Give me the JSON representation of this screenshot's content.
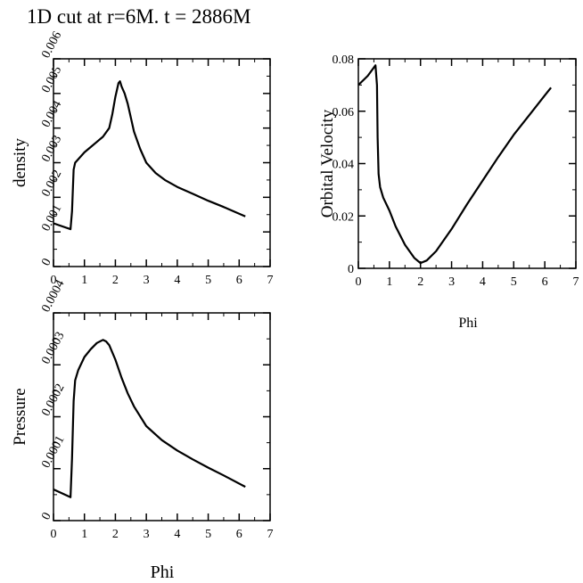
{
  "page_title": "1D cut  at r=6M. t = 2886M",
  "chart_data": [
    {
      "id": "density",
      "type": "line",
      "xlabel": "",
      "ylabel": "density",
      "xlim": [
        0,
        7
      ],
      "ylim": [
        0,
        0.006
      ],
      "x_ticks": [
        0,
        1,
        2,
        3,
        4,
        5,
        6,
        7
      ],
      "x_tick_labels": [
        "0",
        "1",
        "2",
        "3",
        "4",
        "5",
        "6",
        "7"
      ],
      "y_ticks": [
        0,
        0.001,
        0.002,
        0.003,
        0.004,
        0.005,
        0.006
      ],
      "y_tick_labels": [
        "0",
        "0.001",
        "0.002",
        "0.003",
        "0.004",
        "0.005",
        "0.006"
      ],
      "y_label_rotated": true,
      "series": [
        {
          "name": "density",
          "x": [
            0,
            0.55,
            0.6,
            0.65,
            0.7,
            0.8,
            1.0,
            1.2,
            1.4,
            1.6,
            1.8,
            1.9,
            2.0,
            2.1,
            2.15,
            2.2,
            2.3,
            2.4,
            2.5,
            2.6,
            2.8,
            3.0,
            3.3,
            3.6,
            4.0,
            4.5,
            5.0,
            5.5,
            6.2
          ],
          "y": [
            0.00125,
            0.00108,
            0.0016,
            0.0028,
            0.003,
            0.0031,
            0.0033,
            0.00345,
            0.0036,
            0.00375,
            0.004,
            0.0044,
            0.0049,
            0.0053,
            0.00535,
            0.0052,
            0.005,
            0.0047,
            0.0043,
            0.0039,
            0.0034,
            0.003,
            0.0027,
            0.0025,
            0.0023,
            0.0021,
            0.0019,
            0.00172,
            0.00145
          ]
        }
      ]
    },
    {
      "id": "orbital-velocity",
      "type": "line",
      "xlabel": "Phi",
      "ylabel": "Orbital Velocity",
      "xlim": [
        0,
        7
      ],
      "ylim": [
        0,
        0.08
      ],
      "x_ticks": [
        0,
        1,
        2,
        3,
        4,
        5,
        6,
        7
      ],
      "x_tick_labels": [
        "0",
        "1",
        "2",
        "3",
        "4",
        "5",
        "6",
        "7"
      ],
      "y_ticks": [
        0,
        0.02,
        0.04,
        0.06,
        0.08
      ],
      "y_tick_labels": [
        "0",
        "0.02",
        "0.04",
        "0.06",
        "0.08"
      ],
      "y_label_rotated": true,
      "series": [
        {
          "name": "orbital velocity",
          "x": [
            0,
            0.3,
            0.55,
            0.6,
            0.62,
            0.65,
            0.7,
            0.8,
            1.0,
            1.2,
            1.5,
            1.8,
            2.0,
            2.2,
            2.5,
            3.0,
            3.5,
            4.0,
            4.5,
            5.0,
            5.5,
            6.0,
            6.2
          ],
          "y": [
            0.07,
            0.0735,
            0.0775,
            0.07,
            0.05,
            0.036,
            0.031,
            0.027,
            0.022,
            0.016,
            0.009,
            0.004,
            0.002,
            0.003,
            0.0065,
            0.015,
            0.0245,
            0.0335,
            0.0425,
            0.051,
            0.0585,
            0.066,
            0.069
          ]
        }
      ]
    },
    {
      "id": "pressure",
      "type": "line",
      "xlabel": "Phi",
      "ylabel": "Pressure",
      "xlim": [
        0,
        7
      ],
      "ylim": [
        0,
        0.0004
      ],
      "x_ticks": [
        0,
        1,
        2,
        3,
        4,
        5,
        6,
        7
      ],
      "x_tick_labels": [
        "0",
        "1",
        "2",
        "3",
        "4",
        "5",
        "6",
        "7"
      ],
      "y_ticks": [
        0,
        0.0001,
        0.0002,
        0.0003,
        0.0004
      ],
      "y_tick_labels": [
        "0",
        "0.0001",
        "0.0002",
        "0.0003",
        "0.0004"
      ],
      "y_label_rotated": true,
      "series": [
        {
          "name": "pressure",
          "x": [
            0,
            0.55,
            0.6,
            0.65,
            0.7,
            0.8,
            1.0,
            1.2,
            1.4,
            1.6,
            1.7,
            1.8,
            2.0,
            2.2,
            2.4,
            2.6,
            3.0,
            3.5,
            4.0,
            4.5,
            5.0,
            5.5,
            6.2
          ],
          "y": [
            6e-05,
            4.5e-05,
            0.00012,
            0.00023,
            0.00027,
            0.00029,
            0.000315,
            0.00033,
            0.000342,
            0.000348,
            0.000345,
            0.000338,
            0.00031,
            0.000275,
            0.000245,
            0.00022,
            0.000182,
            0.000155,
            0.000135,
            0.000118,
            0.000102,
            8.7e-05,
            6.5e-05
          ]
        }
      ]
    }
  ]
}
